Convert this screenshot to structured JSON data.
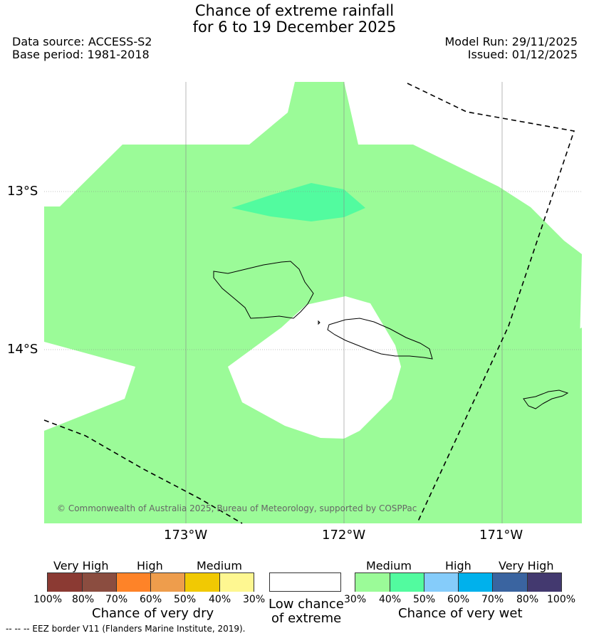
{
  "header": {
    "title_line1": "Chance of extreme rainfall",
    "title_line2": "for 6 to 19 December 2025",
    "data_source": "Data source: ACCESS-S2",
    "base_period": "Base period: 1981-2018",
    "model_run": "Model Run: 29/11/2025",
    "issued": "Issued: 01/12/2025"
  },
  "map": {
    "lat_labels": [
      "13°S",
      "14°S"
    ],
    "lon_labels": [
      "173°W",
      "172°W",
      "171°W"
    ],
    "copyright": "© Commonwealth of Australia 2025, Bureau of Meteorology, supported by COSPPac",
    "colors": {
      "medium_wet": "#9bfb98",
      "high_wet_40": "#52fb9f",
      "low": "#ffffff"
    }
  },
  "legend": {
    "dry": {
      "categories": [
        "Very High",
        "High",
        "Medium"
      ],
      "ticks": [
        "100%",
        "80%",
        "70%",
        "60%",
        "50%",
        "40%",
        "30%"
      ],
      "colors": [
        "#8b3a33",
        "#8b4d40",
        "#fe8328",
        "#ee9d4c",
        "#f1c903",
        "#fef791"
      ],
      "label": "Chance of very dry"
    },
    "neutral": {
      "label_line1": "Low chance",
      "label_line2": "of extreme",
      "color": "#ffffff"
    },
    "wet": {
      "categories": [
        "Medium",
        "High",
        "Very High"
      ],
      "ticks": [
        "30%",
        "40%",
        "50%",
        "60%",
        "70%",
        "80%",
        "100%"
      ],
      "colors": [
        "#9bfb98",
        "#52fb9f",
        "#85ccfa",
        "#00b1ec",
        "#3a64a0",
        "#43396f"
      ],
      "label": "Chance of very wet"
    }
  },
  "footer": {
    "eez_note": "-- -- -- EEZ border V11 (Flanders Marine Institute, 2019)."
  }
}
